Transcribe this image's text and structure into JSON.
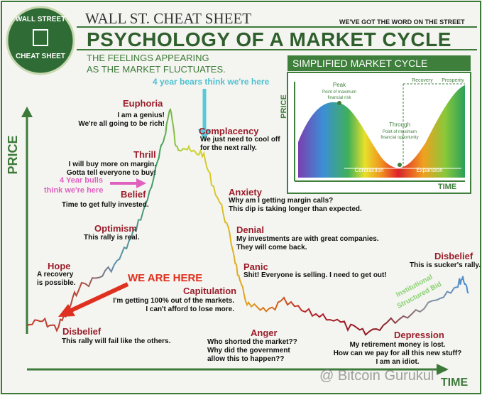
{
  "header": {
    "logo": [
      "WALL STREET",
      "CHEAT SHEET"
    ],
    "brand": "WALL ST. CHEAT SHEET",
    "tagline": "WE'VE GOT THE WORD ON THE STREET",
    "title": "PSYCHOLOGY OF A MARKET CYCLE",
    "subtitle": [
      "THE FEELINGS APPEARING",
      "AS THE MARKET FLUCTUATES."
    ]
  },
  "axes": {
    "y": "PRICE",
    "x": "TIME"
  },
  "stages": [
    {
      "name": "Disbelief",
      "lines": [
        "This rally will fail like the others."
      ]
    },
    {
      "name": "Hope",
      "lines": [
        "A recovery",
        "is possible."
      ]
    },
    {
      "name": "Optimism",
      "lines": [
        "This rally is real."
      ]
    },
    {
      "name": "Belief",
      "lines": [
        "Time to get fully invested."
      ]
    },
    {
      "name": "Thrill",
      "lines": [
        "I will buy more on margin.",
        "Gotta tell everyone to buy!"
      ]
    },
    {
      "name": "Euphoria",
      "lines": [
        "I am a genius!",
        "We're all going to be rich!"
      ]
    },
    {
      "name": "Complacency",
      "lines": [
        "We just need to cool off",
        "for the next rally."
      ]
    },
    {
      "name": "Anxiety",
      "lines": [
        "Why am I getting margin calls?",
        "This dip is taking longer than expected."
      ]
    },
    {
      "name": "Denial",
      "lines": [
        "My investments are with great companies.",
        "They will come back."
      ]
    },
    {
      "name": "Panic",
      "lines": [
        "Shit! Everyone is selling. I need to get out!"
      ]
    },
    {
      "name": "Capitulation",
      "lines": [
        "I'm getting 100% out of the markets.",
        "I can't afford to lose more."
      ]
    },
    {
      "name": "Anger",
      "lines": [
        "Who shorted the market??",
        "Why did the government",
        "allow this to happen??"
      ]
    },
    {
      "name": "Depression",
      "lines": [
        "My retirement money is lost.",
        "How can we pay for all this new stuff?",
        "I am an idiot."
      ]
    },
    {
      "name": "Disbelief",
      "lines": [
        "This is sucker's rally."
      ]
    }
  ],
  "annotations": {
    "bears": "4 year bears think we're here",
    "bulls": [
      "4 Year bulls",
      "think we're here"
    ],
    "here": "WE ARE HERE",
    "bid": [
      "Institutional",
      "Structured Bid"
    ]
  },
  "inset": {
    "title": "SIMPLIFIED MARKET CYCLE",
    "y": "PRICE",
    "x": "TIME",
    "peak": "Peak",
    "peak_note": [
      "Point of maximum",
      "financial risk"
    ],
    "trough": "Through",
    "trough_note": [
      "Point of maximum",
      "financial opportunity"
    ],
    "recovery": "Recovery",
    "prosperity": "Prosperity",
    "contraction": "Contraction",
    "expansion": "Expansion"
  },
  "watermark": "@ Bitcoin Gurukul"
}
